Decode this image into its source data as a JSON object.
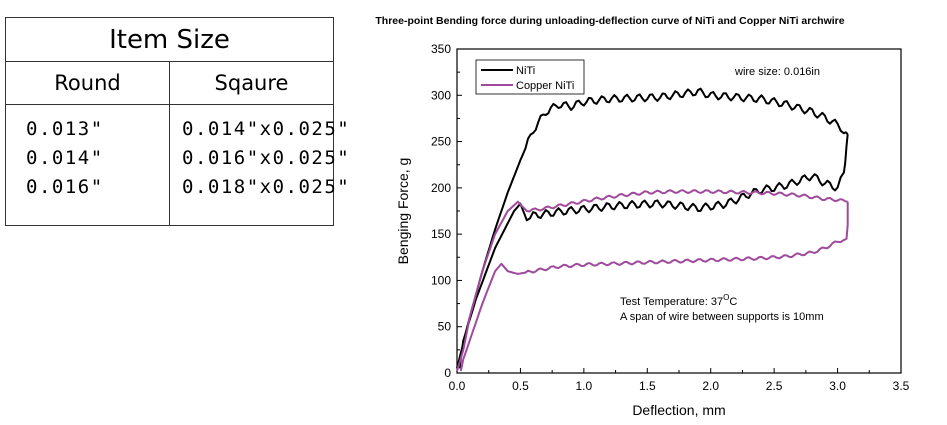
{
  "size_table": {
    "title": "Item Size",
    "headers": [
      "Round",
      "Sqaure"
    ],
    "round": [
      "0.013\"",
      "0.014\"",
      "0.016\""
    ],
    "square": [
      "0.014\"x0.025\"",
      "0.016\"x0.025\"",
      "0.018\"x0.025\""
    ]
  },
  "chart_data": {
    "type": "line",
    "title": "Three-point Bending force during unloading-deflection curve of  NiTi and Copper NiTi archwire",
    "xlabel": "Deflection,  mm",
    "ylabel": "Benging Force,  g",
    "xlim": [
      0,
      3.5
    ],
    "ylim": [
      0,
      350
    ],
    "xticks": [
      "0.0",
      "0.5",
      "1.0",
      "1.5",
      "2.0",
      "2.5",
      "3.0",
      "3.5"
    ],
    "yticks": [
      "0",
      "50",
      "100",
      "150",
      "200",
      "250",
      "300",
      "350"
    ],
    "grid": false,
    "legend_position": "top-left",
    "annotations": {
      "wire_size": "wire size: 0.016in",
      "test_temp_prefix": "Test Temperature: 37",
      "test_temp_sup": "O",
      "test_temp_suffix": "C",
      "span_note": "A span of wire between supports is 10mm"
    },
    "series": [
      {
        "name": "NiTi",
        "color": "#000000",
        "loading": [
          [
            0.0,
            5
          ],
          [
            0.1,
            60
          ],
          [
            0.2,
            110
          ],
          [
            0.3,
            155
          ],
          [
            0.4,
            195
          ],
          [
            0.5,
            230
          ],
          [
            0.6,
            262
          ],
          [
            0.7,
            282
          ],
          [
            0.8,
            290
          ],
          [
            0.9,
            288
          ],
          [
            1.0,
            293
          ],
          [
            1.2,
            296
          ],
          [
            1.4,
            297
          ],
          [
            1.6,
            298
          ],
          [
            1.8,
            302
          ],
          [
            1.9,
            304
          ],
          [
            2.0,
            300
          ],
          [
            2.2,
            298
          ],
          [
            2.4,
            296
          ],
          [
            2.6,
            290
          ],
          [
            2.8,
            282
          ],
          [
            2.9,
            276
          ],
          [
            3.0,
            268
          ],
          [
            3.05,
            262
          ],
          [
            3.08,
            258
          ]
        ],
        "unloading": [
          [
            3.08,
            258
          ],
          [
            3.07,
            245
          ],
          [
            3.05,
            215
          ],
          [
            3.0,
            200
          ],
          [
            2.9,
            205
          ],
          [
            2.8,
            213
          ],
          [
            2.7,
            208
          ],
          [
            2.6,
            203
          ],
          [
            2.5,
            200
          ],
          [
            2.4,
            198
          ],
          [
            2.3,
            193
          ],
          [
            2.2,
            187
          ],
          [
            2.1,
            182
          ],
          [
            2.0,
            180
          ],
          [
            1.9,
            178
          ],
          [
            1.8,
            180
          ],
          [
            1.6,
            183
          ],
          [
            1.4,
            182
          ],
          [
            1.2,
            180
          ],
          [
            1.0,
            177
          ],
          [
            0.8,
            174
          ],
          [
            0.6,
            170
          ],
          [
            0.55,
            165
          ],
          [
            0.5,
            183
          ],
          [
            0.45,
            175
          ],
          [
            0.3,
            135
          ],
          [
            0.15,
            80
          ],
          [
            0.05,
            35
          ],
          [
            0.02,
            5
          ]
        ]
      },
      {
        "name": "Copper NiTi",
        "color": "#a04a9c",
        "loading": [
          [
            0.0,
            2
          ],
          [
            0.05,
            25
          ],
          [
            0.1,
            60
          ],
          [
            0.2,
            110
          ],
          [
            0.3,
            150
          ],
          [
            0.4,
            175
          ],
          [
            0.48,
            185
          ],
          [
            0.55,
            175
          ],
          [
            0.7,
            178
          ],
          [
            0.9,
            183
          ],
          [
            1.1,
            188
          ],
          [
            1.3,
            192
          ],
          [
            1.5,
            195
          ],
          [
            1.7,
            196
          ],
          [
            2.0,
            196
          ],
          [
            2.3,
            195
          ],
          [
            2.5,
            194
          ],
          [
            2.7,
            192
          ],
          [
            2.9,
            188
          ],
          [
            3.0,
            187
          ],
          [
            3.08,
            185
          ]
        ],
        "unloading": [
          [
            3.08,
            185
          ],
          [
            3.08,
            160
          ],
          [
            3.07,
            145
          ],
          [
            3.0,
            142
          ],
          [
            2.9,
            135
          ],
          [
            2.8,
            130
          ],
          [
            2.6,
            126
          ],
          [
            2.4,
            124
          ],
          [
            2.2,
            123
          ],
          [
            2.0,
            122
          ],
          [
            1.8,
            121
          ],
          [
            1.6,
            120
          ],
          [
            1.4,
            119
          ],
          [
            1.2,
            118
          ],
          [
            1.0,
            117
          ],
          [
            0.8,
            115
          ],
          [
            0.6,
            110
          ],
          [
            0.48,
            107
          ],
          [
            0.4,
            110
          ],
          [
            0.35,
            118
          ],
          [
            0.3,
            110
          ],
          [
            0.2,
            75
          ],
          [
            0.1,
            35
          ],
          [
            0.05,
            15
          ],
          [
            0.03,
            2
          ]
        ]
      }
    ]
  }
}
